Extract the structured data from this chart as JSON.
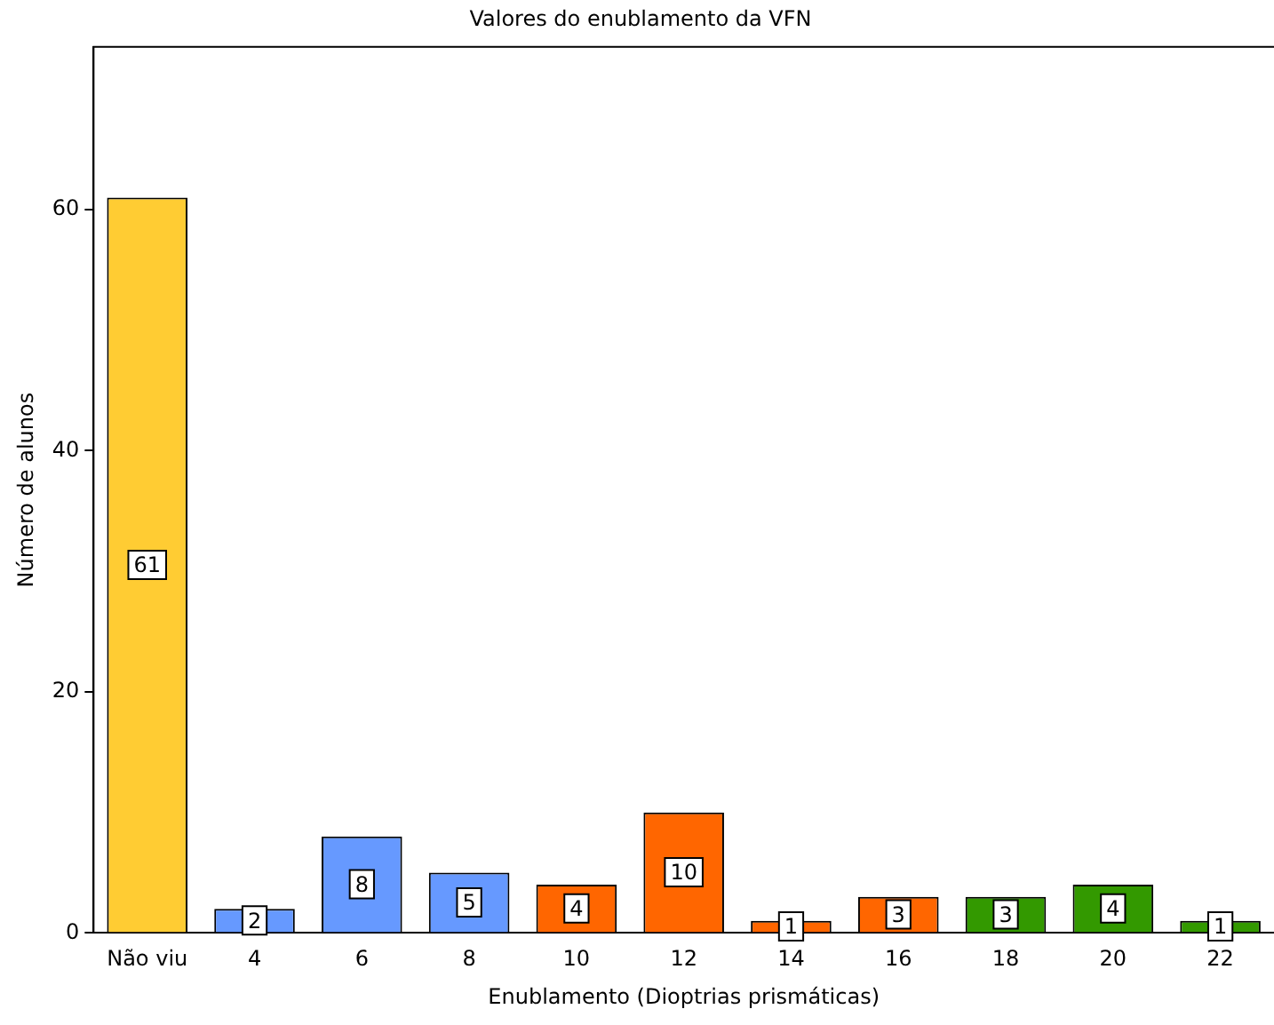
{
  "chart_data": {
    "type": "bar",
    "title": "Valores do enublamento da VFN",
    "xlabel": "Enublamento (Dioptrias prismáticas)",
    "ylabel": "Número de alunos",
    "categories": [
      "Não viu",
      "4",
      "6",
      "8",
      "10",
      "12",
      "14",
      "16",
      "18",
      "20",
      "22"
    ],
    "values": [
      61,
      2,
      8,
      5,
      4,
      10,
      1,
      3,
      3,
      4,
      1
    ],
    "colors": [
      "#ffcc33",
      "#6699ff",
      "#6699ff",
      "#6699ff",
      "#ff6600",
      "#ff6600",
      "#ff6600",
      "#ff6600",
      "#339900",
      "#339900",
      "#339900"
    ],
    "ylim": [
      0,
      73.5
    ],
    "yticks": [
      0,
      20,
      40,
      60
    ],
    "grid": false,
    "legend": false,
    "data_labels": true
  }
}
